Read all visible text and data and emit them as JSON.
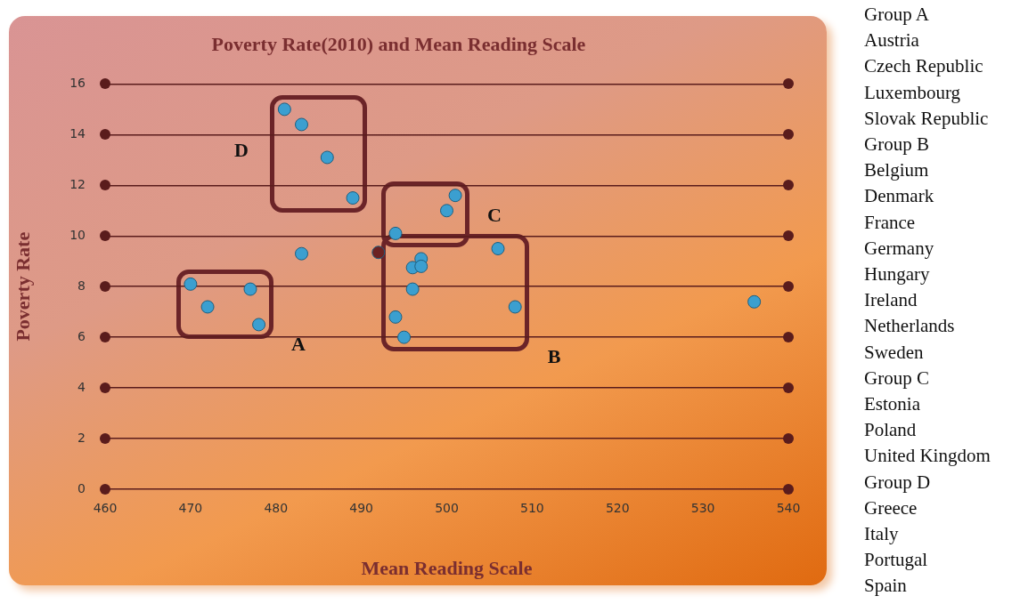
{
  "chart_data": {
    "type": "scatter",
    "title": "Poverty Rate(2010) and Mean Reading Scale",
    "xlabel": "Mean Reading Scale",
    "ylabel": "Poverty Rate",
    "series": [
      {
        "color": "#3b9fd0",
        "x": [
          470,
          472,
          477,
          478
        ],
        "values": [
          8.1,
          7.2,
          7.9,
          6.5
        ]
      },
      {
        "color": "#3b9fd0",
        "x": [
          497,
          496,
          497,
          506,
          496,
          508,
          494,
          495
        ],
        "values": [
          9.1,
          8.75,
          8.8,
          9.5,
          7.9,
          7.2,
          6.8,
          6.0
        ]
      },
      {
        "color": "#3b9fd0",
        "x": [
          501,
          500,
          494
        ],
        "values": [
          11.6,
          11.0,
          10.1
        ]
      },
      {
        "color": "#3b9fd0",
        "x": [
          481,
          483,
          486,
          489
        ],
        "values": [
          15.0,
          14.4,
          13.1,
          11.5
        ]
      },
      {
        "color": "#3b9fd0",
        "x": [
          483,
          536
        ],
        "values": [
          9.3,
          7.4
        ]
      },
      {
        "color": "#6b2222",
        "x": [
          492
        ],
        "values": [
          9.35
        ]
      }
    ],
    "xlim": [
      460,
      540
    ],
    "xticks": [
      460,
      470,
      480,
      490,
      500,
      510,
      520,
      530,
      540
    ],
    "ylim": [
      0,
      16
    ],
    "yticks": [
      0,
      2,
      4,
      6,
      8,
      10,
      12,
      14,
      16
    ],
    "grid": "y",
    "legend": false,
    "marker": "circle",
    "annotations": [
      "A",
      "B",
      "C",
      "D",
      "Group A",
      "Austria",
      "Czech Republic",
      "Luxembourg",
      "Slovak Republic",
      "Group B",
      "Belgium",
      "Denmark",
      "France",
      "Germany",
      "Hungary",
      "Ireland",
      "Netherlands",
      "Sweden",
      "Group C",
      "Estonia",
      "Poland",
      "United Kingdom",
      "Group D",
      "Greece",
      "Italy",
      "Portugal",
      "Spain"
    ]
  }
}
